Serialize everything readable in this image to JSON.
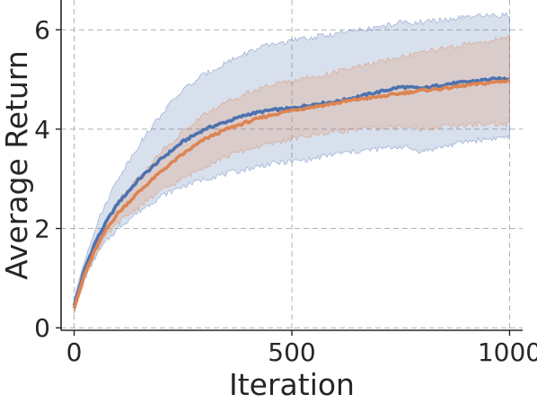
{
  "chart_data": {
    "type": "line",
    "title": "",
    "xlabel": "Iteration",
    "ylabel": "Average Return",
    "xlim": [
      -30,
      1030
    ],
    "ylim": [
      -0.05,
      6.6
    ],
    "xticks": [
      0,
      500,
      1000
    ],
    "yticks": [
      0,
      2,
      4,
      6
    ],
    "xtick_labels": [
      "0",
      "500",
      "1000"
    ],
    "ytick_labels": [
      "0",
      "2",
      "4",
      "6"
    ],
    "grid": true,
    "legend": "none",
    "x": [
      0,
      25,
      50,
      75,
      100,
      150,
      200,
      250,
      300,
      350,
      400,
      450,
      500,
      550,
      600,
      650,
      700,
      750,
      800,
      850,
      900,
      950,
      1000
    ],
    "series": [
      {
        "color": "#4c72b0",
        "values": [
          0.45,
          1.2,
          1.75,
          2.15,
          2.5,
          3.0,
          3.4,
          3.75,
          4.0,
          4.15,
          4.3,
          4.38,
          4.42,
          4.5,
          4.55,
          4.65,
          4.75,
          4.85,
          4.82,
          4.9,
          4.95,
          5.0,
          5.02
        ],
        "lower": [
          0.3,
          1.0,
          1.45,
          1.75,
          2.0,
          2.35,
          2.65,
          2.85,
          3.0,
          3.1,
          3.2,
          3.3,
          3.35,
          3.4,
          3.5,
          3.55,
          3.6,
          3.65,
          3.55,
          3.65,
          3.75,
          3.8,
          3.85
        ],
        "upper": [
          0.6,
          1.4,
          2.05,
          2.55,
          3.0,
          3.7,
          4.3,
          4.8,
          5.1,
          5.35,
          5.55,
          5.7,
          5.78,
          5.85,
          5.92,
          5.98,
          6.05,
          6.15,
          6.15,
          6.2,
          6.25,
          6.28,
          6.3
        ]
      },
      {
        "color": "#dd8452",
        "values": [
          0.4,
          1.1,
          1.6,
          2.0,
          2.3,
          2.75,
          3.15,
          3.5,
          3.8,
          4.0,
          4.15,
          4.28,
          4.38,
          4.45,
          4.52,
          4.6,
          4.65,
          4.72,
          4.78,
          4.82,
          4.88,
          4.93,
          4.98
        ],
        "lower": [
          0.3,
          1.0,
          1.5,
          1.85,
          2.1,
          2.45,
          2.75,
          3.0,
          3.25,
          3.45,
          3.6,
          3.7,
          3.8,
          3.88,
          3.95,
          4.0,
          4.02,
          4.05,
          4.0,
          4.05,
          4.08,
          4.1,
          4.1
        ],
        "upper": [
          0.5,
          1.25,
          1.75,
          2.15,
          2.55,
          3.05,
          3.55,
          3.95,
          4.3,
          4.55,
          4.75,
          4.88,
          4.98,
          5.05,
          5.15,
          5.25,
          5.35,
          5.45,
          5.55,
          5.62,
          5.7,
          5.78,
          5.85
        ]
      }
    ]
  }
}
